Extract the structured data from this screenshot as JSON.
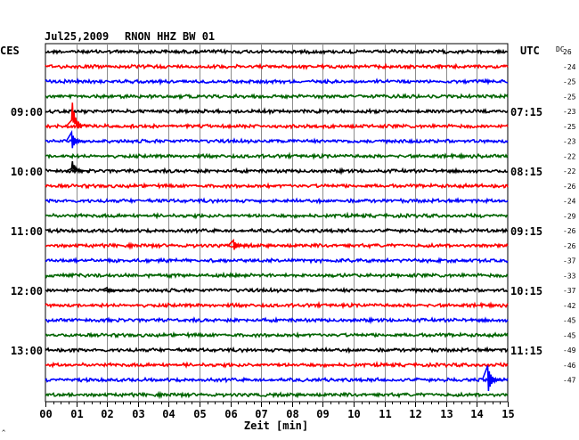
{
  "header": {
    "date": "Jul25,2009",
    "station": "RNON HHZ BW 01",
    "left_zone": "CES",
    "right_zone": "UTC",
    "dc_label": "DC"
  },
  "chart_data": {
    "type": "line",
    "title": "Jul25,2009   RNON HHZ BW 01",
    "xlabel": "Zeit [min]",
    "x_ticks": [
      "00",
      "01",
      "02",
      "03",
      "04",
      "05",
      "06",
      "07",
      "08",
      "09",
      "10",
      "11",
      "12",
      "13",
      "14",
      "15"
    ],
    "xlim": [
      0,
      15
    ],
    "grid": true,
    "rows": 24,
    "row_colors": [
      "#000000",
      "#ff0000",
      "#0000ff",
      "#006400"
    ],
    "left_hour_labels": [
      {
        "row": 4,
        "text": "09:00"
      },
      {
        "row": 8,
        "text": "10:00"
      },
      {
        "row": 12,
        "text": "11:00"
      },
      {
        "row": 16,
        "text": "12:00"
      },
      {
        "row": 20,
        "text": "13:00"
      }
    ],
    "right_hour_labels": [
      {
        "row": 4,
        "text": "07:15"
      },
      {
        "row": 8,
        "text": "08:15"
      },
      {
        "row": 12,
        "text": "09:15"
      },
      {
        "row": 16,
        "text": "10:15"
      },
      {
        "row": 20,
        "text": "11:15"
      }
    ],
    "dc_offsets": [
      "26",
      "-24",
      "-25",
      "-25",
      "-23",
      "-25",
      "-23",
      "-22",
      "-22",
      "-26",
      "-24",
      "-29",
      "-26",
      "-26",
      "-37",
      "-33",
      "-37",
      "-42",
      "-45",
      "-45",
      "-49",
      "-46",
      "-47"
    ],
    "events": [
      {
        "row": 5,
        "x_min": 0.85,
        "amplitude": 34,
        "side": "up"
      },
      {
        "row": 6,
        "x_min": 0.85,
        "amplitude": 10,
        "side": "both"
      },
      {
        "row": 8,
        "x_min": 0.85,
        "amplitude": 14,
        "side": "up"
      },
      {
        "row": 13,
        "x_min": 6.1,
        "amplitude": 6,
        "side": "both"
      },
      {
        "row": 16,
        "x_min": 2.0,
        "amplitude": 3,
        "side": "both"
      },
      {
        "row": 22,
        "x_min": 14.35,
        "amplitude": 16,
        "side": "both"
      }
    ]
  },
  "footer": {
    "corner_mark": "^"
  }
}
